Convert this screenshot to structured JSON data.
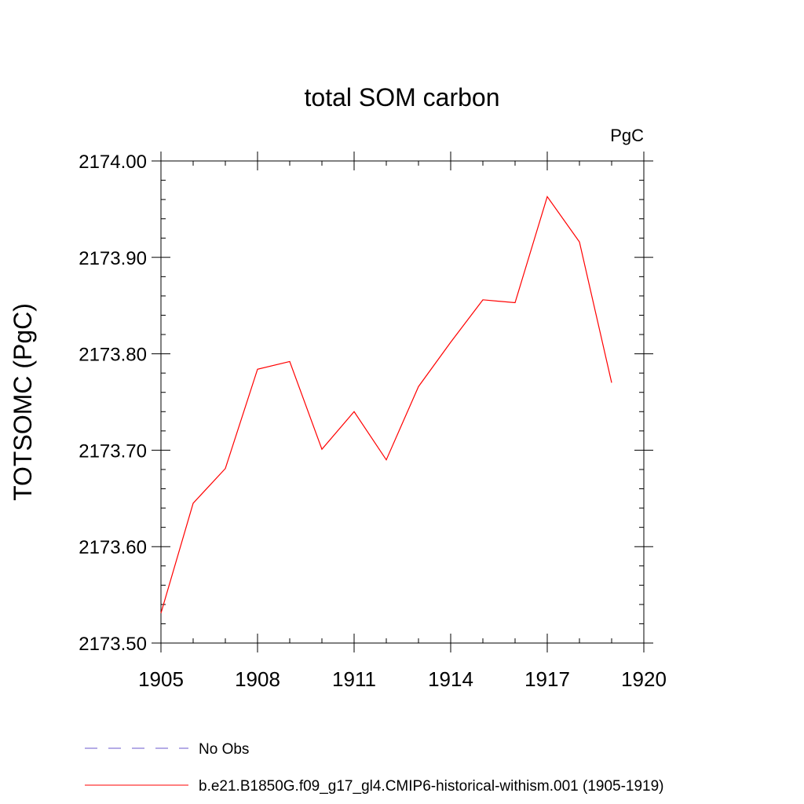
{
  "chart_data": {
    "type": "line",
    "title": "total SOM carbon",
    "units_label": "PgC",
    "ylabel": "TOTSOMC  (PgC)",
    "xlabel": "",
    "xlim": [
      1905,
      1920
    ],
    "ylim": [
      2173.5,
      2174.0
    ],
    "x_ticks": [
      1905,
      1908,
      1911,
      1914,
      1917,
      1920
    ],
    "y_ticks": [
      2173.5,
      2173.6,
      2173.7,
      2173.8,
      2173.9,
      2174.0
    ],
    "y_tick_labels": [
      "2173.50",
      "2173.60",
      "2173.70",
      "2173.80",
      "2173.90",
      "2174.00"
    ],
    "grid": false,
    "legend_position": "bottom",
    "series": [
      {
        "name": "b.e21.B1850G.f09_g17_gl4.CMIP6-historical-withism.001 (1905-1919)",
        "color": "#ff0000",
        "style": "solid",
        "x": [
          1905,
          1906,
          1907,
          1908,
          1909,
          1910,
          1911,
          1912,
          1913,
          1914,
          1915,
          1916,
          1917,
          1918,
          1919
        ],
        "values": [
          2173.531,
          2173.645,
          2173.681,
          2173.784,
          2173.792,
          2173.701,
          2173.74,
          2173.69,
          2173.766,
          2173.812,
          2173.856,
          2173.853,
          2173.963,
          2173.916,
          2173.77
        ]
      }
    ],
    "legend": [
      {
        "label": "No Obs",
        "color": "#6a5acd",
        "style": "dashed"
      },
      {
        "label": "b.e21.B1850G.f09_g17_gl4.CMIP6-historical-withism.001 (1905-1919)",
        "color": "#ff0000",
        "style": "solid"
      }
    ]
  }
}
